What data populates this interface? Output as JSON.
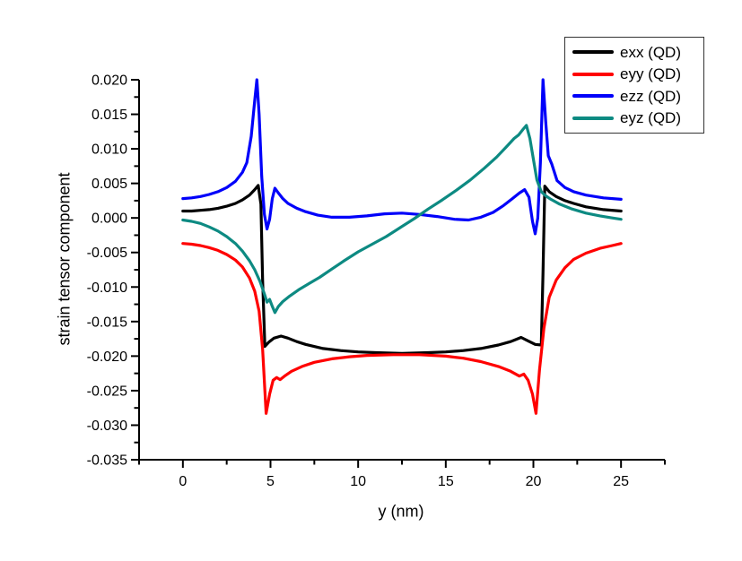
{
  "figure": {
    "background": "#ffffff"
  },
  "chart_data": {
    "type": "line",
    "title": "",
    "xlabel": "y (nm)",
    "ylabel": "strain tensor component",
    "xlim": [
      -2.5,
      27.5
    ],
    "ylim": [
      -0.035,
      0.02
    ],
    "grid": false,
    "legend_position": "top-right",
    "axis_color": "#000000",
    "x_major_ticks": [
      {
        "v": 0,
        "label": "0"
      },
      {
        "v": 5,
        "label": "5"
      },
      {
        "v": 10,
        "label": "10"
      },
      {
        "v": 15,
        "label": "15"
      },
      {
        "v": 20,
        "label": "20"
      },
      {
        "v": 25,
        "label": "25"
      }
    ],
    "x_minor_ticks": [
      -2.5,
      2.5,
      7.5,
      12.5,
      17.5,
      22.5,
      27.5
    ],
    "y_major_ticks": [
      {
        "v": 0.02,
        "label": "0.020"
      },
      {
        "v": 0.015,
        "label": "0.015"
      },
      {
        "v": 0.01,
        "label": "0.010"
      },
      {
        "v": 0.005,
        "label": "0.005"
      },
      {
        "v": 0.0,
        "label": "0.000"
      },
      {
        "v": -0.005,
        "label": "-0.005"
      },
      {
        "v": -0.01,
        "label": "-0.010"
      },
      {
        "v": -0.015,
        "label": "-0.015"
      },
      {
        "v": -0.02,
        "label": "-0.020"
      },
      {
        "v": -0.025,
        "label": "-0.025"
      },
      {
        "v": -0.03,
        "label": "-0.030"
      },
      {
        "v": -0.035,
        "label": "-0.035"
      }
    ],
    "y_minor_ticks": [
      0.0175,
      0.0125,
      0.0075,
      0.0025,
      -0.0025,
      -0.0075,
      -0.0125,
      -0.0175,
      -0.0225,
      -0.0275,
      -0.0325
    ],
    "series": [
      {
        "name": "exx (QD)",
        "color": "#000000",
        "points": [
          [
            0,
            0.001
          ],
          [
            0.5,
            0.001
          ],
          [
            1,
            0.0011
          ],
          [
            1.5,
            0.0012
          ],
          [
            2,
            0.0014
          ],
          [
            2.5,
            0.0017
          ],
          [
            3,
            0.0021
          ],
          [
            3.4,
            0.0026
          ],
          [
            3.8,
            0.0033
          ],
          [
            4.1,
            0.0041
          ],
          [
            4.3,
            0.0047
          ],
          [
            4.45,
            0.002
          ],
          [
            4.55,
            -0.009
          ],
          [
            4.68,
            -0.0186
          ],
          [
            4.9,
            -0.018
          ],
          [
            5.2,
            -0.0174
          ],
          [
            5.6,
            -0.0171
          ],
          [
            6,
            -0.0174
          ],
          [
            6.5,
            -0.0179
          ],
          [
            7,
            -0.0183
          ],
          [
            8,
            -0.0189
          ],
          [
            9,
            -0.0192
          ],
          [
            10,
            -0.0194
          ],
          [
            11,
            -0.0195
          ],
          [
            12.5,
            -0.0196
          ],
          [
            14,
            -0.0195
          ],
          [
            15,
            -0.0194
          ],
          [
            16,
            -0.0192
          ],
          [
            17,
            -0.0189
          ],
          [
            18,
            -0.0184
          ],
          [
            18.7,
            -0.0179
          ],
          [
            19.3,
            -0.0173
          ],
          [
            19.7,
            -0.0178
          ],
          [
            20.1,
            -0.0183
          ],
          [
            20.45,
            -0.0184
          ],
          [
            20.55,
            -0.008
          ],
          [
            20.65,
            0.0046
          ],
          [
            20.9,
            0.0038
          ],
          [
            21.3,
            0.0031
          ],
          [
            21.8,
            0.0025
          ],
          [
            22.3,
            0.0021
          ],
          [
            23,
            0.0016
          ],
          [
            24,
            0.0012
          ],
          [
            25,
            0.001
          ]
        ]
      },
      {
        "name": "eyy (QD)",
        "color": "#ff0000",
        "points": [
          [
            0,
            -0.0037
          ],
          [
            0.5,
            -0.0038
          ],
          [
            1,
            -0.004
          ],
          [
            1.5,
            -0.0043
          ],
          [
            2,
            -0.0047
          ],
          [
            2.5,
            -0.0053
          ],
          [
            3,
            -0.0061
          ],
          [
            3.4,
            -0.0071
          ],
          [
            3.8,
            -0.0087
          ],
          [
            4.1,
            -0.0106
          ],
          [
            4.35,
            -0.0135
          ],
          [
            4.55,
            -0.019
          ],
          [
            4.75,
            -0.0283
          ],
          [
            4.95,
            -0.0255
          ],
          [
            5.15,
            -0.0235
          ],
          [
            5.35,
            -0.0231
          ],
          [
            5.55,
            -0.0234
          ],
          [
            5.8,
            -0.0229
          ],
          [
            6.2,
            -0.0222
          ],
          [
            6.8,
            -0.0215
          ],
          [
            7.5,
            -0.0209
          ],
          [
            8.5,
            -0.0204
          ],
          [
            9.5,
            -0.0201
          ],
          [
            10.5,
            -0.0199
          ],
          [
            12,
            -0.0198
          ],
          [
            13.5,
            -0.0198
          ],
          [
            15,
            -0.02
          ],
          [
            16,
            -0.0203
          ],
          [
            17,
            -0.0208
          ],
          [
            18,
            -0.0215
          ],
          [
            18.7,
            -0.0222
          ],
          [
            19.2,
            -0.0229
          ],
          [
            19.45,
            -0.0226
          ],
          [
            19.7,
            -0.0235
          ],
          [
            19.95,
            -0.0255
          ],
          [
            20.15,
            -0.0283
          ],
          [
            20.35,
            -0.022
          ],
          [
            20.6,
            -0.016
          ],
          [
            20.9,
            -0.0115
          ],
          [
            21.3,
            -0.009
          ],
          [
            21.8,
            -0.0072
          ],
          [
            22.3,
            -0.006
          ],
          [
            23,
            -0.0051
          ],
          [
            23.8,
            -0.0044
          ],
          [
            24.5,
            -0.004
          ],
          [
            25,
            -0.0037
          ]
        ]
      },
      {
        "name": "ezz (QD)",
        "color": "#0000fa",
        "points": [
          [
            0,
            0.0028
          ],
          [
            0.5,
            0.0029
          ],
          [
            1,
            0.0031
          ],
          [
            1.5,
            0.0034
          ],
          [
            2,
            0.0038
          ],
          [
            2.5,
            0.0044
          ],
          [
            3,
            0.0053
          ],
          [
            3.4,
            0.0066
          ],
          [
            3.65,
            0.008
          ],
          [
            3.9,
            0.0118
          ],
          [
            4.1,
            0.017
          ],
          [
            4.22,
            0.02
          ],
          [
            4.35,
            0.015
          ],
          [
            4.5,
            0.006
          ],
          [
            4.65,
            0.0005
          ],
          [
            4.8,
            -0.0016
          ],
          [
            4.95,
            -0.0002
          ],
          [
            5.1,
            0.0028
          ],
          [
            5.25,
            0.0043
          ],
          [
            5.45,
            0.0036
          ],
          [
            5.7,
            0.0028
          ],
          [
            6,
            0.0021
          ],
          [
            6.5,
            0.0014
          ],
          [
            7,
            0.0009
          ],
          [
            7.7,
            0.0004
          ],
          [
            8.5,
            0.0001
          ],
          [
            9.5,
            0.0001
          ],
          [
            10.5,
            0.0003
          ],
          [
            11.5,
            0.0006
          ],
          [
            12.5,
            0.0007
          ],
          [
            13.5,
            0.0005
          ],
          [
            14.5,
            0.0002
          ],
          [
            15.5,
            -0.0002
          ],
          [
            16.3,
            -0.0003
          ],
          [
            17,
            0.0001
          ],
          [
            17.7,
            0.0008
          ],
          [
            18.3,
            0.0018
          ],
          [
            18.8,
            0.0028
          ],
          [
            19.2,
            0.0036
          ],
          [
            19.5,
            0.0041
          ],
          [
            19.75,
            0.003
          ],
          [
            19.95,
            -0.0005
          ],
          [
            20.1,
            -0.0023
          ],
          [
            20.25,
            0
          ],
          [
            20.4,
            0.008
          ],
          [
            20.55,
            0.02
          ],
          [
            20.7,
            0.014
          ],
          [
            20.85,
            0.009
          ],
          [
            21.05,
            0.0078
          ],
          [
            21.35,
            0.0054
          ],
          [
            21.8,
            0.0044
          ],
          [
            22.3,
            0.0038
          ],
          [
            23,
            0.0033
          ],
          [
            24,
            0.0029
          ],
          [
            25,
            0.0027
          ]
        ]
      },
      {
        "name": "eyz (QD)",
        "color": "#0d8a82",
        "points": [
          [
            0,
            -0.0003
          ],
          [
            0.5,
            -0.0005
          ],
          [
            1,
            -0.0008
          ],
          [
            1.5,
            -0.0013
          ],
          [
            2,
            -0.0019
          ],
          [
            2.5,
            -0.0027
          ],
          [
            3,
            -0.0037
          ],
          [
            3.4,
            -0.0048
          ],
          [
            3.8,
            -0.0062
          ],
          [
            4.1,
            -0.0075
          ],
          [
            4.4,
            -0.0092
          ],
          [
            4.65,
            -0.011
          ],
          [
            4.8,
            -0.0122
          ],
          [
            4.95,
            -0.0118
          ],
          [
            5.1,
            -0.0128
          ],
          [
            5.25,
            -0.0137
          ],
          [
            5.45,
            -0.0128
          ],
          [
            5.7,
            -0.0121
          ],
          [
            6.1,
            -0.0113
          ],
          [
            6.6,
            -0.0104
          ],
          [
            7.2,
            -0.0095
          ],
          [
            7.8,
            -0.0086
          ],
          [
            8.5,
            -0.0074
          ],
          [
            9.2,
            -0.0062
          ],
          [
            10,
            -0.0049
          ],
          [
            10.8,
            -0.0038
          ],
          [
            11.6,
            -0.0027
          ],
          [
            12.4,
            -0.0014
          ],
          [
            13.2,
            -0.0001
          ],
          [
            14,
            0.0013
          ],
          [
            14.8,
            0.0026
          ],
          [
            15.6,
            0.004
          ],
          [
            16.4,
            0.0055
          ],
          [
            17.2,
            0.0072
          ],
          [
            17.9,
            0.0088
          ],
          [
            18.5,
            0.0104
          ],
          [
            18.9,
            0.0115
          ],
          [
            19.15,
            0.012
          ],
          [
            19.4,
            0.0128
          ],
          [
            19.6,
            0.0134
          ],
          [
            19.8,
            0.0115
          ],
          [
            20,
            0.0085
          ],
          [
            20.2,
            0.0055
          ],
          [
            20.45,
            0.0038
          ],
          [
            20.7,
            0.0032
          ],
          [
            21,
            0.0027
          ],
          [
            21.5,
            0.002
          ],
          [
            22.2,
            0.0013
          ],
          [
            23,
            0.0007
          ],
          [
            23.8,
            0.0003
          ],
          [
            24.5,
            0
          ],
          [
            25,
            -0.0002
          ]
        ]
      }
    ]
  }
}
